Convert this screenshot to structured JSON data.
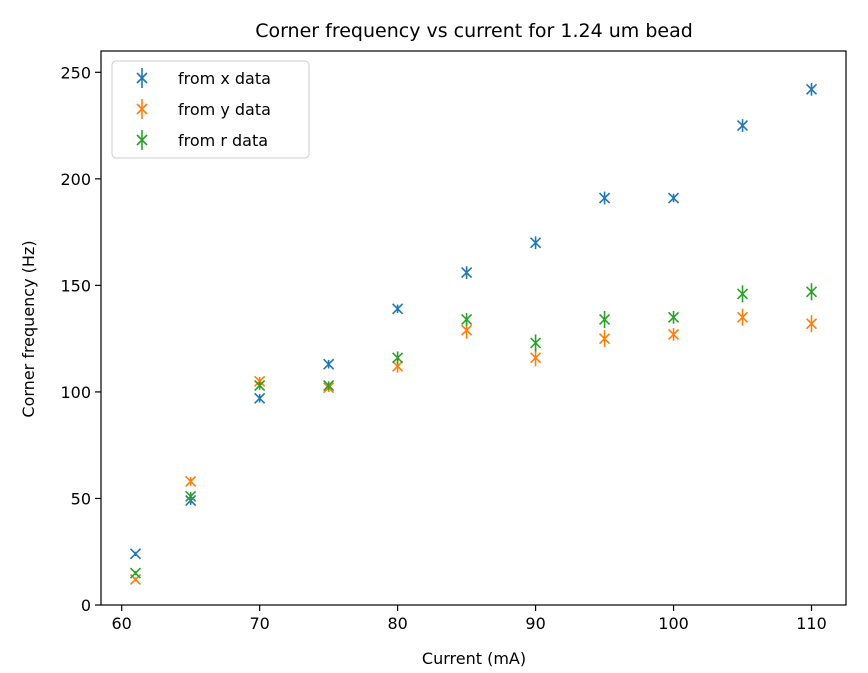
{
  "chart_data": {
    "type": "scatter",
    "title": "Corner frequency vs current for 1.24 um bead",
    "xlabel": "Current (mA)",
    "ylabel": "Corner frequency (Hz)",
    "xlim": [
      58.5,
      112.5
    ],
    "ylim": [
      0,
      260
    ],
    "xticks": [
      60,
      70,
      80,
      90,
      100,
      110
    ],
    "yticks": [
      0,
      50,
      100,
      150,
      200,
      250
    ],
    "grid": false,
    "legend_position": "top-left",
    "series": [
      {
        "name": "from x data",
        "color": "#1f77b4",
        "x": [
          61,
          65,
          70,
          75,
          80,
          85,
          90,
          95,
          100,
          105,
          110
        ],
        "y": [
          24,
          49,
          97,
          113,
          139,
          156,
          170,
          191,
          191,
          225,
          242
        ],
        "err": [
          1,
          2,
          2,
          2,
          2,
          3,
          3,
          3,
          2,
          3,
          3
        ]
      },
      {
        "name": "from y data",
        "color": "#ff7f0e",
        "x": [
          61,
          65,
          70,
          75,
          80,
          85,
          90,
          95,
          100,
          105,
          110
        ],
        "y": [
          12,
          58,
          105,
          102,
          112,
          129,
          116,
          125,
          127,
          135,
          132
        ],
        "err": [
          1,
          2,
          2,
          2,
          3,
          4,
          4,
          4,
          3,
          4,
          4
        ]
      },
      {
        "name": "from r data",
        "color": "#2ca02c",
        "x": [
          61,
          65,
          70,
          75,
          80,
          85,
          90,
          95,
          100,
          105,
          110
        ],
        "y": [
          15,
          51,
          103,
          103,
          116,
          134,
          123,
          134,
          135,
          146,
          147
        ],
        "err": [
          1,
          2,
          2,
          2,
          3,
          3,
          4,
          4,
          3,
          4,
          4
        ]
      }
    ]
  }
}
